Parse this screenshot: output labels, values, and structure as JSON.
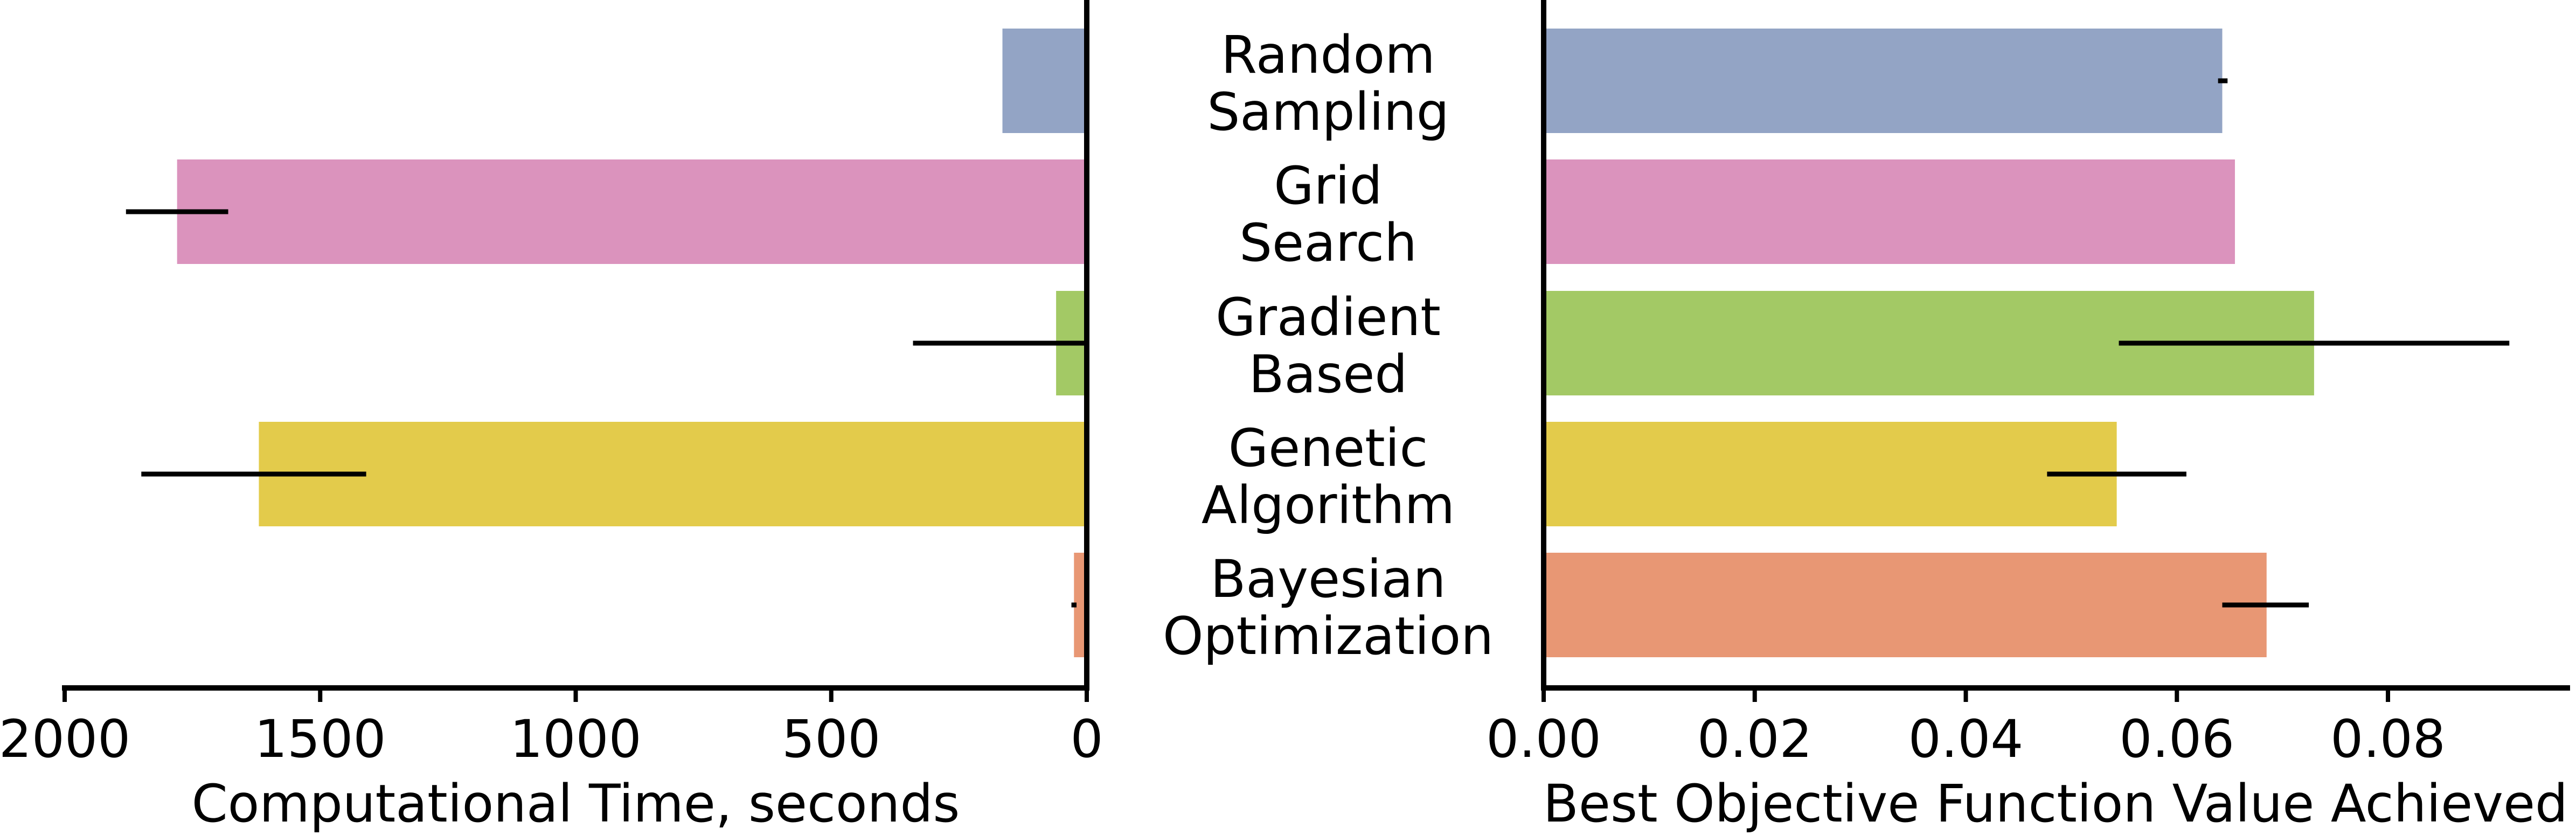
{
  "chart_data": [
    {
      "type": "bar",
      "orientation": "horizontal",
      "x_direction": "reversed",
      "categories": [
        "Random\nSampling",
        "Grid\nSearch",
        "Gradient\nBased",
        "Genetic\nAlgorithm",
        "Bayesian\nOptimization"
      ],
      "values": [
        165,
        1780,
        60,
        1620,
        25
      ],
      "error_low": [
        170,
        1680,
        0,
        1410,
        20
      ],
      "error_high": [
        170,
        1880,
        340,
        1850,
        30
      ],
      "colors": [
        "#93a4c5",
        "#db93bd",
        "#a3c965",
        "#e3cb4b",
        "#e89774"
      ],
      "xlabel": "Computational Time, seconds",
      "xlim": [
        2000,
        0
      ],
      "xticks": [
        "2000",
        "1500",
        "1000",
        "500",
        "0"
      ],
      "xtick_values": [
        2000,
        1500,
        1000,
        500,
        0
      ],
      "grid": false,
      "legend": "none"
    },
    {
      "type": "bar",
      "orientation": "horizontal",
      "categories": [
        "Random\nSampling",
        "Grid\nSearch",
        "Gradient\nBased",
        "Genetic\nAlgorithm",
        "Bayesian\nOptimization"
      ],
      "values": [
        0.0643,
        0.0655,
        0.073,
        0.0543,
        0.0685
      ],
      "error_low": [
        0.0639,
        0.0655,
        0.0545,
        0.0477,
        0.0643
      ],
      "error_high": [
        0.0648,
        0.0655,
        0.0915,
        0.0609,
        0.0725
      ],
      "colors": [
        "#93a4c5",
        "#db93bd",
        "#a3c965",
        "#e3cb4b",
        "#e89774"
      ],
      "xlabel": "Best Objective Function Value Achieved",
      "xlim": [
        0,
        0.097
      ],
      "xticks": [
        "0.00",
        "0.02",
        "0.04",
        "0.06",
        "0.08"
      ],
      "xtick_values": [
        0,
        0.02,
        0.04,
        0.06,
        0.08
      ],
      "grid": false,
      "legend": "none"
    }
  ]
}
